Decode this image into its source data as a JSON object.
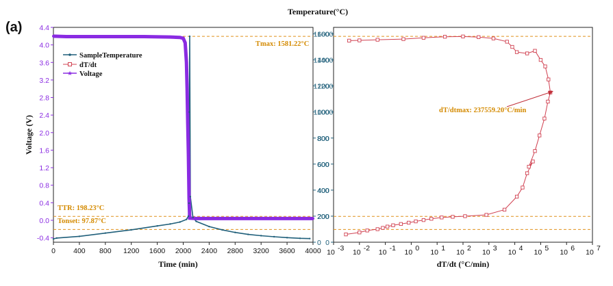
{
  "panel_label": "(a)",
  "top_title": "Temperature(°C)",
  "colors": {
    "temperature": "#1f5f7a",
    "dtdt": "#d04050",
    "voltage": "#8a2be2",
    "reference": "#e0901a",
    "axis": "#222222"
  },
  "chart_data": [
    {
      "type": "line",
      "xlabel": "Time (min)",
      "ylabel": "Voltage (V)",
      "xlim": [
        0,
        4000
      ],
      "ylim_left": [
        -0.5,
        4.4
      ],
      "ylim_right": [
        0,
        1650
      ],
      "xticks": [
        "0",
        "400",
        "800",
        "1200",
        "1600",
        "2000",
        "2400",
        "2800",
        "3200",
        "3600",
        "4000"
      ],
      "yticks_left": [
        "-0.4",
        "0.0",
        "0.4",
        "0.8",
        "1.2",
        "1.6",
        "2.0",
        "2.4",
        "2.8",
        "3.2",
        "3.6",
        "4.0",
        "4.4"
      ],
      "yticks_right": [
        "0",
        "200",
        "400",
        "600",
        "800",
        "1000",
        "1200",
        "1400",
        "1600"
      ],
      "legend": [
        "SampleTemperature",
        "dT/dt",
        "Voltage"
      ],
      "annotations": {
        "tmax": "Tmax: 1581.22°C",
        "ttr": "TTR: 198.23°C",
        "tonset": "Tonset: 97.87°C"
      },
      "reference_lines_temperature": [
        1581.22,
        198.23,
        97.87
      ],
      "series": [
        {
          "name": "SampleTemperature",
          "axis": "right",
          "x": [
            0,
            50,
            400,
            800,
            1200,
            1600,
            1800,
            1950,
            2050,
            2080,
            2090,
            2095,
            2100,
            2110,
            2150,
            2200,
            2400,
            2600,
            2800,
            3000,
            3200,
            3400,
            3600,
            3800,
            3950
          ],
          "y": [
            25,
            32,
            45,
            70,
            95,
            125,
            140,
            155,
            175,
            200,
            300,
            1000,
            1581,
            350,
            190,
            160,
            120,
            95,
            75,
            60,
            50,
            42,
            35,
            30,
            28
          ]
        },
        {
          "name": "Voltage",
          "axis": "left",
          "x": [
            0,
            200,
            600,
            1000,
            1400,
            1800,
            1950,
            2000,
            2030,
            2050,
            2060,
            2070,
            2080,
            2090,
            2100,
            2200,
            2600,
            3000,
            3400,
            3800,
            4000
          ],
          "y": [
            4.2,
            4.19,
            4.19,
            4.19,
            4.19,
            4.18,
            4.17,
            4.15,
            4.05,
            3.6,
            3.0,
            2.2,
            1.5,
            0.5,
            0.05,
            0.04,
            0.04,
            0.04,
            0.04,
            0.04,
            0.04
          ]
        }
      ]
    },
    {
      "type": "scatter",
      "xlabel": "dT/dt (°C/min)",
      "x_scale": "log",
      "xlim": [
        0.001,
        10000000
      ],
      "ylim": [
        0,
        1650
      ],
      "xticks": [
        "10-3",
        "10-2",
        "10-1",
        "10^0",
        "10^1",
        "10^2",
        "10^3",
        "10^4",
        "10^5",
        "10^6",
        "10^7"
      ],
      "yticks": [
        "0",
        "200",
        "400",
        "600",
        "800",
        "1000",
        "1200",
        "1400",
        "1600"
      ],
      "annotation": "dT/dtmax: 237559.20°C/min",
      "reference_lines": [
        1581.22,
        198.23,
        97.87
      ],
      "series": [
        {
          "name": "dT/dt",
          "x": [
            0.003,
            0.01,
            0.02,
            0.05,
            0.08,
            0.12,
            0.2,
            0.4,
            0.8,
            1.5,
            3,
            6,
            15,
            40,
            120,
            800,
            4000,
            12000,
            20000,
            30000,
            50000,
            35000,
            60000,
            90000,
            140000,
            190000,
            237559,
            200000,
            150000,
            100000,
            60000,
            30000,
            12000,
            8000,
            5000,
            1500,
            400,
            100,
            20,
            3,
            0.5,
            0.05,
            0.01,
            0.004
          ],
          "y": [
            60,
            75,
            90,
            100,
            110,
            120,
            130,
            140,
            150,
            160,
            170,
            180,
            190,
            195,
            200,
            210,
            250,
            350,
            420,
            530,
            620,
            580,
            700,
            820,
            950,
            1080,
            1150,
            1250,
            1350,
            1400,
            1470,
            1450,
            1460,
            1500,
            1540,
            1565,
            1575,
            1580,
            1578,
            1570,
            1560,
            1555,
            1550,
            1548
          ]
        }
      ]
    }
  ]
}
